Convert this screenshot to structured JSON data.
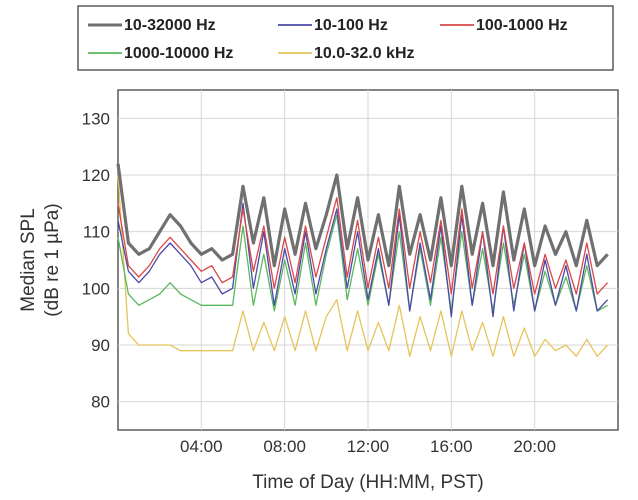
{
  "chart_data": {
    "type": "line",
    "title": "",
    "xlabel": "Time of Day (HH:MM, PST)",
    "ylabel": [
      "Median SPL",
      "(dB re 1 µPa)"
    ],
    "xlim": [
      0,
      24
    ],
    "ylim": [
      75,
      135
    ],
    "x_ticks": [
      4,
      8,
      12,
      16,
      20
    ],
    "x_tick_labels": [
      "04:00",
      "08:00",
      "12:00",
      "16:00",
      "20:00"
    ],
    "y_ticks": [
      80,
      90,
      100,
      110,
      120,
      130
    ],
    "grid": true,
    "legend_position": "top",
    "x": [
      0,
      0.5,
      1,
      1.5,
      2,
      2.5,
      3,
      3.5,
      4,
      4.5,
      5,
      5.5,
      6,
      6.5,
      7,
      7.5,
      8,
      8.5,
      9,
      9.5,
      10,
      10.5,
      11,
      11.5,
      12,
      12.5,
      13,
      13.5,
      14,
      14.5,
      15,
      15.5,
      16,
      16.5,
      17,
      17.5,
      18,
      18.5,
      19,
      19.5,
      20,
      20.5,
      21,
      21.5,
      22,
      22.5,
      23,
      23.5
    ],
    "series": [
      {
        "name": "10-32000 Hz",
        "color": "#707070",
        "values": [
          122,
          108,
          106,
          107,
          110,
          113,
          111,
          108,
          106,
          107,
          105,
          106,
          118,
          108,
          116,
          104,
          114,
          106,
          115,
          107,
          113,
          120,
          107,
          116,
          105,
          113,
          104,
          118,
          106,
          113,
          105,
          116,
          104,
          118,
          106,
          115,
          104,
          117,
          105,
          114,
          104,
          111,
          106,
          110,
          104,
          112,
          104,
          106
        ]
      },
      {
        "name": "10-100 Hz",
        "color": "#4a4aa8",
        "values": [
          112,
          103,
          101,
          103,
          106,
          108,
          106,
          104,
          101,
          102,
          99,
          100,
          115,
          100,
          110,
          97,
          107,
          99,
          110,
          99,
          107,
          114,
          100,
          110,
          98,
          107,
          97,
          113,
          96,
          108,
          98,
          111,
          95,
          113,
          97,
          110,
          95,
          111,
          96,
          108,
          96,
          105,
          97,
          104,
          96,
          106,
          96,
          98
        ]
      },
      {
        "name": "100-1000 Hz",
        "color": "#d84848",
        "values": [
          115,
          104,
          102,
          104,
          107,
          109,
          107,
          105,
          103,
          104,
          101,
          102,
          114,
          103,
          111,
          100,
          109,
          101,
          111,
          102,
          109,
          116,
          102,
          112,
          100,
          109,
          100,
          114,
          100,
          110,
          101,
          112,
          99,
          114,
          100,
          110,
          99,
          111,
          100,
          108,
          99,
          106,
          100,
          105,
          99,
          108,
          99,
          101
        ]
      },
      {
        "name": "1000-10000 Hz",
        "color": "#5cb85c",
        "values": [
          109,
          99,
          97,
          98,
          99,
          101,
          99,
          98,
          97,
          97,
          97,
          97,
          111,
          97,
          106,
          96,
          105,
          97,
          108,
          97,
          106,
          113,
          98,
          107,
          97,
          106,
          97,
          110,
          96,
          107,
          97,
          109,
          96,
          110,
          97,
          107,
          96,
          108,
          97,
          106,
          96,
          103,
          97,
          102,
          96,
          104,
          96,
          97
        ]
      },
      {
        "name": "10.0-32.0 kHz",
        "color": "#e6c45a",
        "values": [
          120,
          92,
          90,
          90,
          90,
          90,
          89,
          89,
          89,
          89,
          89,
          89,
          96,
          89,
          94,
          89,
          95,
          89,
          96,
          89,
          95,
          98,
          89,
          96,
          89,
          94,
          89,
          97,
          88,
          95,
          89,
          96,
          88,
          96,
          89,
          94,
          88,
          95,
          88,
          93,
          88,
          91,
          89,
          90,
          88,
          91,
          88,
          90
        ]
      }
    ]
  }
}
